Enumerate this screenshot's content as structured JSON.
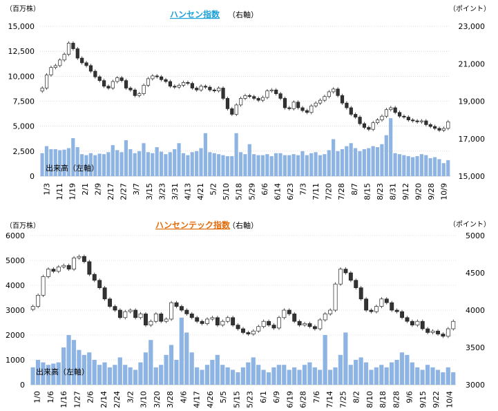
{
  "chart_data": [
    {
      "type": "candlestick-volume",
      "title": "ハンセン指数",
      "title_suffix": "（右軸）",
      "title_color": "#1aa0d8",
      "left_unit": "（百万株）",
      "right_unit": "（ポイント）",
      "volume_label": "出来高（左軸）",
      "left_ylim": [
        0,
        15000
      ],
      "left_ticks": [
        "15,000",
        "12,500",
        "10,000",
        "7,500",
        "5,000",
        "2,500",
        "0"
      ],
      "right_ylim": [
        15000,
        23000
      ],
      "right_ticks": [
        "23,000",
        "21,000",
        "19,000",
        "17,000",
        "15,000"
      ],
      "x_ticks": [
        "1/3",
        "1/11",
        "1/19",
        "2/1",
        "2/9",
        "2/17",
        "2/27",
        "3/7",
        "3/15",
        "3/23",
        "3/31",
        "4/13",
        "4/21",
        "5/2",
        "5/10",
        "5/18",
        "5/29",
        "6/6",
        "6/14",
        "6/23",
        "7/3",
        "7/11",
        "7/20",
        "7/28",
        "8/7",
        "8/15",
        "8/23",
        "8/31",
        "9/12",
        "9/20",
        "9/28",
        "10/9"
      ],
      "index_close": [
        19700,
        20400,
        20800,
        20900,
        21200,
        21500,
        22100,
        21800,
        21300,
        21050,
        20900,
        20600,
        20300,
        20100,
        19800,
        19700,
        20050,
        20250,
        20100,
        19700,
        19600,
        19300,
        19400,
        19850,
        20200,
        20350,
        20300,
        20150,
        20050,
        19800,
        19750,
        19850,
        20000,
        19950,
        19700,
        19600,
        19800,
        19750,
        19600,
        19550,
        19700,
        19150,
        18600,
        18300,
        18800,
        19150,
        19300,
        19250,
        19150,
        19050,
        19200,
        19550,
        19600,
        19400,
        19150,
        18650,
        18600,
        18950,
        18650,
        18500,
        18400,
        18750,
        18900,
        19050,
        19250,
        19500,
        19650,
        19300,
        18900,
        18650,
        18300,
        18150,
        17800,
        17600,
        17500,
        17850,
        18000,
        18200,
        18550,
        18650,
        18400,
        18200,
        18150,
        18000,
        17950,
        17900,
        17950,
        17750,
        17650,
        17550,
        17450,
        17550,
        17900
      ],
      "volume": [
        2300,
        3000,
        2700,
        2700,
        2600,
        2650,
        2800,
        3800,
        2900,
        2200,
        2100,
        2300,
        2100,
        2250,
        2200,
        2400,
        3100,
        2600,
        2400,
        3600,
        2700,
        2300,
        2500,
        3300,
        2400,
        2300,
        2900,
        2450,
        2200,
        2400,
        2700,
        3300,
        2300,
        2100,
        2400,
        2500,
        2800,
        4300,
        2400,
        2300,
        2200,
        2100,
        2000,
        2000,
        4300,
        2400,
        2200,
        3200,
        2200,
        2100,
        2100,
        2200,
        2000,
        2300,
        2300,
        2100,
        2100,
        2200,
        2100,
        2500,
        2100,
        2300,
        2400,
        2100,
        2200,
        2600,
        3700,
        2500,
        2700,
        3000,
        3300,
        2800,
        2500,
        2700,
        2800,
        3000,
        2900,
        3200,
        4100,
        5800,
        2300,
        2200,
        2100,
        2000,
        1900,
        2000,
        2200,
        2100,
        1800,
        1900,
        1700,
        1300,
        1600
      ]
    },
    {
      "type": "candlestick-volume",
      "title": "ハンセンテック指数",
      "title_suffix": "（右軸）",
      "title_color": "#e26b0a",
      "left_unit": "（百万株）",
      "right_unit": "（ポイント）",
      "volume_label": "出来高（左軸）",
      "left_ylim": [
        0,
        6000
      ],
      "left_ticks": [
        "6000",
        "5000",
        "4000",
        "3000",
        "2000",
        "1000",
        "0"
      ],
      "right_ylim": [
        3000,
        5000
      ],
      "right_ticks": [
        "5000",
        "4500",
        "4000",
        "3500",
        "3000"
      ],
      "x_ticks": [
        "1/0",
        "1/6",
        "1/16",
        "1/27",
        "2/6",
        "2/14",
        "2/24",
        "3/2",
        "3/10",
        "3/20",
        "3/28",
        "4/6",
        "4/17",
        "4/26",
        "5/5",
        "5/15",
        "5/23",
        "6/1",
        "6/9",
        "6/19",
        "6/28",
        "7/6",
        "7/14",
        "7/25",
        "8/2",
        "8/10",
        "8/18",
        "8/28",
        "9/6",
        "9/15",
        "9/22",
        "10/4"
      ],
      "index_close": [
        4050,
        4200,
        4450,
        4550,
        4520,
        4580,
        4600,
        4550,
        4700,
        4720,
        4650,
        4480,
        4400,
        4300,
        4150,
        4050,
        4000,
        3900,
        3980,
        4000,
        3900,
        3950,
        3800,
        3850,
        3950,
        3850,
        3880,
        4100,
        4050,
        4000,
        3950,
        3900,
        3850,
        3820,
        3880,
        3900,
        3800,
        3850,
        3900,
        3800,
        3750,
        3700,
        3680,
        3720,
        3780,
        3850,
        3800,
        3760,
        3900,
        4000,
        3950,
        3850,
        3800,
        3820,
        3780,
        3750,
        3870,
        3950,
        4000,
        4350,
        4550,
        4500,
        4400,
        4300,
        4150,
        4000,
        3980,
        4050,
        4150,
        4100,
        4000,
        3980,
        3900,
        3850,
        3800,
        3850,
        3750,
        3700,
        3720,
        3680,
        3650,
        3750,
        3850
      ],
      "volume": [
        700,
        1000,
        900,
        800,
        850,
        900,
        1500,
        2000,
        1800,
        1400,
        1200,
        1300,
        1000,
        800,
        900,
        700,
        800,
        1100,
        800,
        700,
        600,
        900,
        1300,
        1800,
        700,
        800,
        1200,
        1600,
        1000,
        2700,
        2100,
        1300,
        700,
        600,
        800,
        1000,
        1200,
        800,
        700,
        600,
        500,
        700,
        900,
        1100,
        800,
        600,
        500,
        700,
        800,
        800,
        600,
        700,
        600,
        800,
        900,
        700,
        600,
        2000,
        600,
        700,
        1200,
        2100,
        800,
        1000,
        1100,
        900,
        600,
        700,
        800,
        700,
        900,
        1000,
        1300,
        1200,
        900,
        700,
        600,
        800,
        700,
        600,
        500,
        700,
        500
      ]
    }
  ]
}
